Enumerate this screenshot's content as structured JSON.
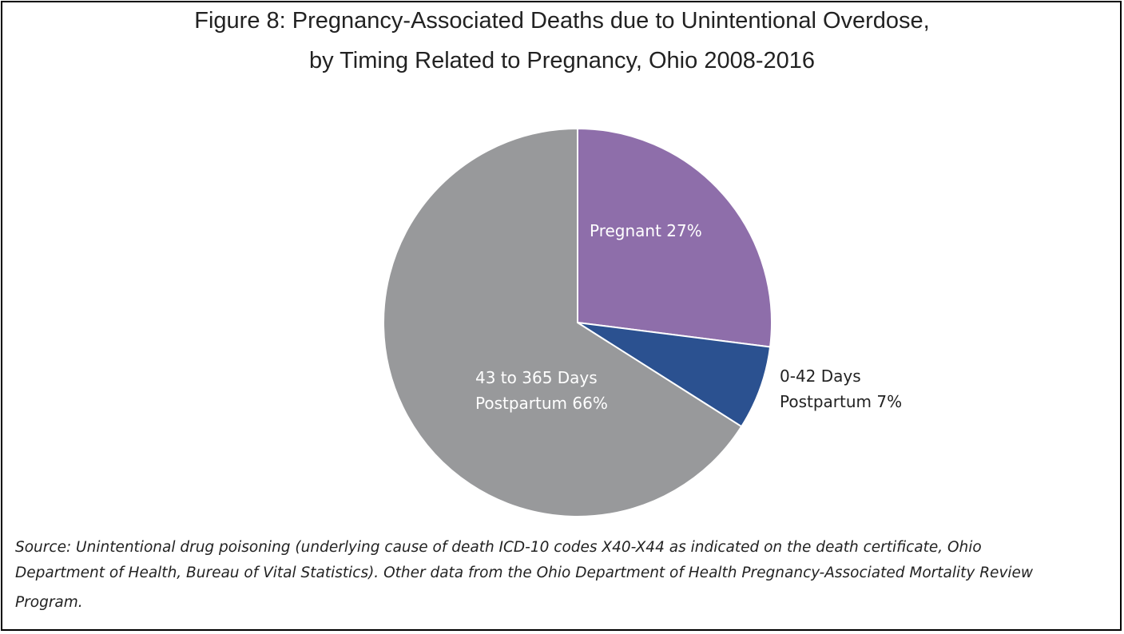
{
  "title_lines": [
    "Figure 8: Pregnancy-Associated Deaths due to Unintentional Overdose,",
    "by Timing Related to Pregnancy, Ohio 2008-2016"
  ],
  "source_lines": [
    "Source: Unintentional drug poisoning (underlying cause of death ICD-10 codes X40-X44 as indicated on the death certificate, Ohio",
    "Department of Health, Bureau of Vital Statistics). Other data from the Ohio Department of Health Pregnancy-Associated Mortality Review",
    "Program."
  ],
  "chart_data": {
    "type": "pie",
    "title": "Figure 8: Pregnancy-Associated Deaths due to Unintentional Overdose, by Timing Related to Pregnancy, Ohio 2008-2016",
    "start": "12 o'clock, clockwise",
    "slices": [
      {
        "category": "Pregnant",
        "value": 27,
        "unit": "%",
        "label_lines": [
          "Pregnant 27%"
        ],
        "label_position": "inside",
        "color": "#8e6eaa",
        "label_color": "#ffffff"
      },
      {
        "category": "0-42 Days Postpartum",
        "value": 7,
        "unit": "%",
        "label_lines": [
          "0-42 Days",
          "Postpartum 7%"
        ],
        "label_position": "outside",
        "color": "#2b5190",
        "label_color": "#222222"
      },
      {
        "category": "43 to 365 Days Postpartum",
        "value": 66,
        "unit": "%",
        "label_lines": [
          "43 to 365 Days",
          "Postpartum 66%"
        ],
        "label_position": "inside",
        "color": "#98999b",
        "label_color": "#ffffff"
      }
    ],
    "slice_border_color": "#ffffff"
  }
}
